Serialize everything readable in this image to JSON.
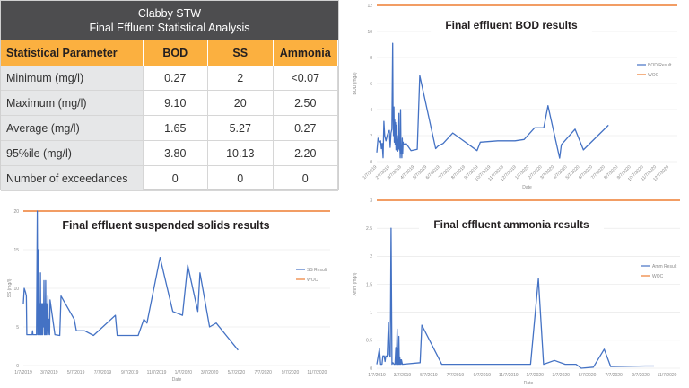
{
  "table": {
    "title_line1": "Clabby STW",
    "title_line2": "Final Effluent Statistical Analysis",
    "headers": [
      "Statistical Parameter",
      "BOD",
      "SS",
      "Ammonia"
    ],
    "rows": [
      [
        "Minimum (mg/l)",
        "0.27",
        "2",
        "<0.07"
      ],
      [
        "Maximum (mg/l)",
        "9.10",
        "20",
        "2.50"
      ],
      [
        "Average (mg/l)",
        "1.65",
        "5.27",
        "0.27"
      ],
      [
        "95%ile (mg/l)",
        "3.80",
        "10.13",
        "2.20"
      ],
      [
        "Number of exceedances",
        "0",
        "0",
        "0"
      ]
    ]
  },
  "colors": {
    "header_bg": "#4d4d4f",
    "header_row_bg": "#fbb040",
    "label_col_bg": "#e6e7e8",
    "series": "#4472c4",
    "limit": "#ed7d31"
  },
  "chart_data": [
    {
      "id": "bod",
      "type": "line",
      "title": "Final effluent BOD results",
      "xlabel": "Date",
      "ylabel": "BOD (mg/l)",
      "ylim": [
        0,
        12
      ],
      "yticks": [
        0,
        2,
        4,
        6,
        8,
        10,
        12
      ],
      "xlim_days": [
        0,
        720
      ],
      "xtick_labels": [
        "1/7/2019",
        "2/7/2019",
        "3/7/2019",
        "4/7/2019",
        "5/7/2019",
        "6/7/2019",
        "7/7/2019",
        "8/7/2019",
        "9/7/2019",
        "10/7/2019",
        "11/7/2019",
        "12/7/2019",
        "1/7/2020",
        "2/7/2020",
        "3/7/2020",
        "4/7/2020",
        "5/7/2020",
        "6/7/2020",
        "7/7/2020",
        "8/7/2020",
        "9/7/2020",
        "10/7/2020",
        "11/7/2020",
        "12/7/2020"
      ],
      "xtick_days": [
        0,
        31,
        59,
        90,
        120,
        151,
        181,
        212,
        243,
        273,
        304,
        334,
        365,
        396,
        425,
        456,
        486,
        517,
        547,
        578,
        609,
        639,
        670,
        700
      ],
      "xtick_rotated": true,
      "legend": [
        "BOD Result",
        "WOC"
      ],
      "legend_position": "right",
      "limit_value": 12,
      "x_unit": "days since 1/7/2019",
      "series": [
        {
          "name": "BOD Result",
          "points": [
            [
              0,
              0.7
            ],
            [
              3,
              1.8
            ],
            [
              6,
              1.5
            ],
            [
              9,
              1.6
            ],
            [
              11,
              1.0
            ],
            [
              13,
              1.4
            ],
            [
              15,
              0.3
            ],
            [
              17,
              3.1
            ],
            [
              19,
              2.0
            ],
            [
              22,
              1.6
            ],
            [
              25,
              2.0
            ],
            [
              28,
              2.3
            ],
            [
              30,
              2.4
            ],
            [
              32,
              1.1
            ],
            [
              34,
              2.2
            ],
            [
              36,
              2.5
            ],
            [
              38,
              9.1
            ],
            [
              39,
              3.5
            ],
            [
              40,
              2.0
            ],
            [
              41,
              4.2
            ],
            [
              42,
              1.5
            ],
            [
              43,
              3.2
            ],
            [
              44,
              1.3
            ],
            [
              45,
              3.0
            ],
            [
              46,
              0.9
            ],
            [
              47,
              2.8
            ],
            [
              48,
              1.2
            ],
            [
              49,
              2.0
            ],
            [
              50,
              0.8
            ],
            [
              51,
              1.7
            ],
            [
              52,
              1.0
            ],
            [
              53,
              3.7
            ],
            [
              54,
              0.9
            ],
            [
              55,
              1.5
            ],
            [
              56,
              0.3
            ],
            [
              57,
              4.0
            ],
            [
              58,
              0.6
            ],
            [
              59,
              1.2
            ],
            [
              60,
              0.3
            ],
            [
              61,
              1.8
            ],
            [
              62,
              0.6
            ],
            [
              63,
              1.5
            ],
            [
              65,
              1.3
            ],
            [
              70,
              1.4
            ],
            [
              82,
              0.85
            ],
            [
              97,
              0.95
            ],
            [
              103,
              6.6
            ],
            [
              141,
              1.0
            ],
            [
              147,
              1.2
            ],
            [
              159,
              1.4
            ],
            [
              182,
              2.2
            ],
            [
              240,
              0.85
            ],
            [
              248,
              1.5
            ],
            [
              290,
              1.6
            ],
            [
              331,
              1.6
            ],
            [
              353,
              1.7
            ],
            [
              378,
              2.6
            ],
            [
              400,
              2.6
            ],
            [
              410,
              4.3
            ],
            [
              438,
              0.27
            ],
            [
              442,
              1.3
            ],
            [
              475,
              2.5
            ],
            [
              495,
              0.9
            ],
            [
              555,
              2.8
            ]
          ]
        }
      ]
    },
    {
      "id": "ss",
      "type": "line",
      "title": "Final effluent suspended solids results",
      "xlabel": "Date",
      "ylabel": "SS (mg/l)",
      "ylim": [
        0,
        20
      ],
      "yticks": [
        0,
        5,
        10,
        15,
        20
      ],
      "xlim_days": [
        0,
        700
      ],
      "xtick_labels": [
        "1/7/2019",
        "3/7/2019",
        "5/7/2019",
        "7/7/2019",
        "9/7/2019",
        "11/7/2019",
        "1/7/2020",
        "3/7/2020",
        "5/7/2020",
        "7/7/2020",
        "9/7/2020",
        "11/7/2020"
      ],
      "xtick_days": [
        0,
        59,
        120,
        181,
        243,
        304,
        365,
        425,
        486,
        547,
        609,
        670
      ],
      "xtick_rotated": false,
      "legend": [
        "SS Result",
        "WOC"
      ],
      "legend_position": "right",
      "limit_value": 20,
      "x_unit": "days since 1/7/2019",
      "series": [
        {
          "name": "SS Result",
          "points": [
            [
              0,
              8
            ],
            [
              2,
              10
            ],
            [
              5,
              9.5
            ],
            [
              7,
              9
            ],
            [
              8,
              4
            ],
            [
              20,
              4
            ],
            [
              21,
              4.5
            ],
            [
              22,
              4
            ],
            [
              30,
              4
            ],
            [
              32,
              20
            ],
            [
              33,
              4
            ],
            [
              34,
              15
            ],
            [
              35,
              4
            ],
            [
              37,
              8
            ],
            [
              38,
              4
            ],
            [
              39,
              12
            ],
            [
              40,
              4
            ],
            [
              41,
              8
            ],
            [
              42,
              4
            ],
            [
              43,
              8
            ],
            [
              44,
              4
            ],
            [
              45,
              8
            ],
            [
              46,
              5
            ],
            [
              47,
              11
            ],
            [
              48,
              4
            ],
            [
              49,
              8
            ],
            [
              50,
              4
            ],
            [
              51,
              11
            ],
            [
              52,
              4
            ],
            [
              53,
              8
            ],
            [
              54,
              6
            ],
            [
              55,
              4
            ],
            [
              56,
              9
            ],
            [
              57,
              4
            ],
            [
              58,
              6
            ],
            [
              60,
              4
            ],
            [
              61,
              8.5
            ],
            [
              72,
              4
            ],
            [
              83,
              3.9
            ],
            [
              86,
              9
            ],
            [
              116,
              6
            ],
            [
              121,
              4.5
            ],
            [
              140,
              4.5
            ],
            [
              160,
              3.9
            ],
            [
              210,
              6.5
            ],
            [
              214,
              3.9
            ],
            [
              262,
              3.9
            ],
            [
              275,
              6
            ],
            [
              282,
              5.5
            ],
            [
              312,
              14
            ],
            [
              341,
              7
            ],
            [
              363,
              6.5
            ],
            [
              375,
              13
            ],
            [
              398,
              7
            ],
            [
              403,
              12
            ],
            [
              425,
              5
            ],
            [
              440,
              5.5
            ],
            [
              490,
              2
            ]
          ]
        }
      ]
    },
    {
      "id": "ammonia",
      "type": "line",
      "title": "Final effluent ammonia results",
      "xlabel": "Date",
      "ylabel": "Amm (mg/l)",
      "ylim": [
        0,
        3
      ],
      "yticks": [
        0,
        0.5,
        1,
        1.5,
        2,
        2.5,
        3
      ],
      "xlim_days": [
        0,
        700
      ],
      "xtick_labels": [
        "1/7/2019",
        "3/7/2019",
        "5/7/2019",
        "7/7/2019",
        "9/7/2019",
        "11/7/2019",
        "1/7/2020",
        "3/7/2020",
        "5/7/2020",
        "7/7/2020",
        "9/7/2020",
        "11/7/2020"
      ],
      "xtick_days": [
        0,
        59,
        120,
        181,
        243,
        304,
        365,
        425,
        486,
        547,
        609,
        670
      ],
      "xtick_rotated": false,
      "legend": [
        "Amm Result",
        "WOC"
      ],
      "legend_position": "right",
      "limit_value": 3,
      "x_unit": "days since 1/7/2019",
      "series": [
        {
          "name": "Amm Result",
          "points": [
            [
              0,
              0.07
            ],
            [
              6,
              0.35
            ],
            [
              9,
              0.07
            ],
            [
              12,
              0.07
            ],
            [
              14,
              0.22
            ],
            [
              17,
              0.22
            ],
            [
              19,
              0.12
            ],
            [
              21,
              0.22
            ],
            [
              24,
              0.2
            ],
            [
              27,
              0.82
            ],
            [
              29,
              0.25
            ],
            [
              31,
              0.2
            ],
            [
              33,
              2.5
            ],
            [
              35,
              0.07
            ],
            [
              37,
              0.1
            ],
            [
              40,
              0.07
            ],
            [
              42,
              0.07
            ],
            [
              44,
              0.37
            ],
            [
              45,
              0.07
            ],
            [
              47,
              0.7
            ],
            [
              48,
              0.07
            ],
            [
              49,
              0.35
            ],
            [
              50,
              0.07
            ],
            [
              51,
              0.57
            ],
            [
              52,
              0.07
            ],
            [
              53,
              0.2
            ],
            [
              54,
              0.07
            ],
            [
              55,
              0.15
            ],
            [
              56,
              0.07
            ],
            [
              57,
              0.15
            ],
            [
              59,
              0.07
            ],
            [
              100,
              0.1
            ],
            [
              104,
              0.77
            ],
            [
              150,
              0.07
            ],
            [
              355,
              0.07
            ],
            [
              373,
              1.6
            ],
            [
              385,
              0.07
            ],
            [
              410,
              0.14
            ],
            [
              435,
              0.07
            ],
            [
              460,
              0.07
            ],
            [
              472,
              0.0
            ],
            [
              500,
              0.02
            ],
            [
              525,
              0.34
            ],
            [
              540,
              0.03
            ],
            [
              620,
              0.04
            ],
            [
              640,
              0.04
            ]
          ]
        }
      ]
    }
  ]
}
